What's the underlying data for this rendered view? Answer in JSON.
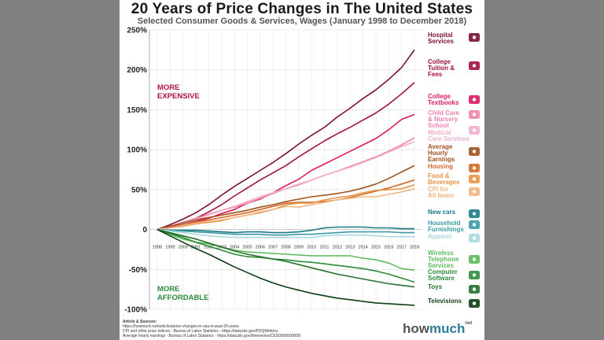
{
  "page": {
    "title": "20 Years of Price Changes in The United States",
    "subtitle": "Selected Consumer Goods & Services, Wages (January 1998 to December 2018)",
    "zones": {
      "more_expensive": [
        "MORE",
        "EXPENSIVE"
      ],
      "more_affordable": [
        "MORE",
        "AFFORDABLE"
      ]
    },
    "sources_heading": "Article & Sources:",
    "sources": [
      "https://howmuch.net/articles/price-changes-in-usa-in-past-20-years",
      "CPI and other price indices - Bureau of Labor Statistics - https://data.bls.gov/PDQWeb/cu",
      "Average hourly earnings - Bureau of Labor Statistics - https://data.bls.gov/timeseries/CES0500000008"
    ],
    "brand": {
      "how": "how",
      "much": "much",
      "net": "net"
    }
  },
  "chart_data": {
    "type": "line",
    "title": "20 Years of Price Changes in The United States",
    "subtitle": "Selected Consumer Goods & Services, Wages (January 1998 to December 2018)",
    "xlabel": "",
    "ylabel": "",
    "ylim": [
      -100,
      250
    ],
    "yticks": [
      250,
      200,
      150,
      100,
      50,
      0,
      -50,
      -100
    ],
    "ytick_labels": [
      "250%",
      "200%",
      "150%",
      "100%",
      "50%",
      "0",
      "-50%",
      "-100%"
    ],
    "x": [
      "1998",
      "1999",
      "2000",
      "2001",
      "2002",
      "2003",
      "2004",
      "2005",
      "2006",
      "2007",
      "2008",
      "2009",
      "2010",
      "2011",
      "2012",
      "2013",
      "2014",
      "2015",
      "2016",
      "2017",
      "2018"
    ],
    "series": [
      {
        "name": "Hospital Services",
        "label": [
          "Hospital",
          "Services"
        ],
        "color": "#7a1030",
        "icon": "hospital-icon",
        "values": [
          0,
          6,
          13,
          21,
          31,
          43,
          54,
          64,
          74,
          84,
          95,
          107,
          118,
          128,
          141,
          152,
          164,
          175,
          188,
          203,
          225
        ]
      },
      {
        "name": "College Tuition & Fees",
        "label": [
          "College",
          "Tuition &",
          "Fees"
        ],
        "color": "#a0123e",
        "icon": "graduation-cap-icon",
        "values": [
          0,
          4,
          9,
          14,
          22,
          31,
          42,
          52,
          62,
          71,
          80,
          91,
          101,
          111,
          120,
          128,
          137,
          146,
          157,
          170,
          184
        ]
      },
      {
        "name": "College Textbooks",
        "label": [
          "College",
          "Textbooks"
        ],
        "color": "#d81b60",
        "icon": "books-icon",
        "values": [
          0,
          3,
          6,
          10,
          14,
          20,
          25,
          33,
          38,
          46,
          55,
          63,
          74,
          82,
          90,
          98,
          106,
          114,
          125,
          138,
          144
        ]
      },
      {
        "name": "Child Care & Nursery School",
        "label": [
          "Child Care",
          "& Nursery",
          "School"
        ],
        "color": "#ee82ac",
        "icon": "child-care-icon",
        "values": [
          0,
          4,
          9,
          14,
          19,
          24,
          28,
          33,
          39,
          45,
          51,
          56,
          62,
          68,
          73,
          79,
          85,
          91,
          98,
          106,
          115
        ]
      },
      {
        "name": "Medical Care Services",
        "label": [
          "Medical",
          "Care Services"
        ],
        "color": "#f3aecb",
        "icon": "stethoscope-icon",
        "values": [
          0,
          4,
          8,
          13,
          18,
          24,
          29,
          35,
          41,
          46,
          51,
          57,
          62,
          68,
          73,
          78,
          84,
          90,
          97,
          104,
          110
        ]
      },
      {
        "name": "Average Hourly Earnings",
        "label": [
          "Average",
          "Hourly",
          "Earnings"
        ],
        "color": "#a0521d",
        "icon": "clock-dollar-icon",
        "values": [
          0,
          4,
          8,
          12,
          15,
          18,
          21,
          24,
          28,
          31,
          35,
          38,
          41,
          43,
          45,
          48,
          52,
          57,
          64,
          72,
          80
        ]
      },
      {
        "name": "Housing",
        "label": [
          "Housing"
        ],
        "color": "#d06a28",
        "icon": "house-icon",
        "values": [
          0,
          2,
          6,
          9,
          12,
          15,
          18,
          21,
          25,
          29,
          33,
          34,
          34,
          35,
          37,
          40,
          44,
          48,
          52,
          57,
          62
        ]
      },
      {
        "name": "Food & Beverages",
        "label": [
          "Food &",
          "Beverages"
        ],
        "color": "#e89445",
        "icon": "food-icon",
        "values": [
          0,
          2,
          4,
          7,
          9,
          11,
          15,
          18,
          21,
          25,
          31,
          33,
          33,
          37,
          40,
          42,
          46,
          49,
          50,
          51,
          56
        ]
      },
      {
        "name": "CPI for All Items",
        "label": [
          "CPI for",
          "All Items"
        ],
        "color": "#f2b57d",
        "icon": "price-tag-icon",
        "values": [
          0,
          2,
          5,
          8,
          10,
          12,
          15,
          18,
          22,
          25,
          29,
          28,
          31,
          34,
          37,
          39,
          41,
          41,
          44,
          47,
          51
        ]
      },
      {
        "name": "New cars",
        "label": [
          "New cars"
        ],
        "color": "#1b7a86",
        "icon": "car-icon",
        "values": [
          0,
          -1,
          -1,
          -1,
          -2,
          -3,
          -4,
          -3,
          -3,
          -4,
          -4,
          -3,
          -1,
          2,
          3,
          3,
          3,
          2,
          2,
          1,
          1
        ]
      },
      {
        "name": "Household Furnishings",
        "label": [
          "Household",
          "Furnishings"
        ],
        "color": "#3a9aa6",
        "icon": "sofa-icon",
        "values": [
          0,
          -1,
          -2,
          -3,
          -4,
          -5,
          -6,
          -6,
          -6,
          -7,
          -7,
          -6,
          -6,
          -5,
          -4,
          -3,
          -3,
          -3,
          -3,
          -4,
          -4
        ]
      },
      {
        "name": "Apparel",
        "label": [
          "Apparel"
        ],
        "color": "#a9d9dd",
        "icon": "shirt-icon",
        "values": [
          0,
          -2,
          -4,
          -6,
          -8,
          -9,
          -10,
          -10,
          -10,
          -10,
          -10,
          -10,
          -10,
          -8,
          -7,
          -7,
          -7,
          -8,
          -9,
          -9,
          -9
        ]
      },
      {
        "name": "Wireless Telephone Services",
        "label": [
          "Wireless",
          "Telephone",
          "Services"
        ],
        "color": "#5aba5a",
        "icon": "phone-icon",
        "values": [
          0,
          -6,
          -12,
          -16,
          -18,
          -22,
          -26,
          -28,
          -29,
          -30,
          -31,
          -32,
          -33,
          -33,
          -33,
          -33,
          -36,
          -38,
          -42,
          -49,
          -51
        ]
      },
      {
        "name": "Computer Software",
        "label": [
          "Computer",
          "Software"
        ],
        "color": "#2e8b3a",
        "icon": "computer-icon",
        "values": [
          0,
          -5,
          -10,
          -16,
          -21,
          -26,
          -31,
          -34,
          -35,
          -37,
          -38,
          -40,
          -41,
          -43,
          -45,
          -47,
          -49,
          -52,
          -56,
          -61,
          -66
        ]
      },
      {
        "name": "Toys",
        "label": [
          "Toys"
        ],
        "color": "#26702f",
        "icon": "toy-icon",
        "values": [
          0,
          -4,
          -8,
          -12,
          -17,
          -22,
          -27,
          -31,
          -34,
          -37,
          -40,
          -44,
          -48,
          -52,
          -56,
          -59,
          -62,
          -65,
          -68,
          -70,
          -72
        ]
      },
      {
        "name": "Televisions",
        "label": [
          "Televisions"
        ],
        "color": "#0d3d13",
        "icon": "tv-icon",
        "values": [
          0,
          -8,
          -16,
          -24,
          -31,
          -39,
          -47,
          -54,
          -61,
          -67,
          -72,
          -76,
          -80,
          -83,
          -86,
          -88,
          -90,
          -92,
          -93,
          -94,
          -95
        ]
      }
    ]
  }
}
